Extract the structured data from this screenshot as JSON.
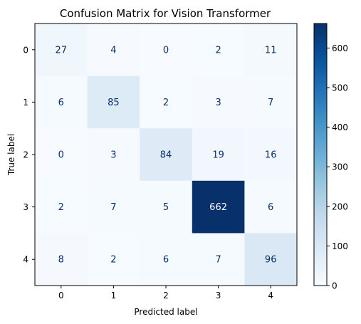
{
  "chart_data": {
    "type": "heatmap",
    "title": "Confusion Matrix for Vision Transformer",
    "xlabel": "Predicted label",
    "ylabel": "True label",
    "x_categories": [
      "0",
      "1",
      "2",
      "3",
      "4"
    ],
    "y_categories": [
      "0",
      "1",
      "2",
      "3",
      "4"
    ],
    "values": [
      [
        27,
        4,
        0,
        2,
        11
      ],
      [
        6,
        85,
        2,
        3,
        7
      ],
      [
        0,
        3,
        84,
        19,
        16
      ],
      [
        2,
        7,
        5,
        662,
        6
      ],
      [
        8,
        2,
        6,
        7,
        96
      ]
    ],
    "colormap": "Blues",
    "colorbar": {
      "range": [
        0,
        662
      ],
      "ticks": [
        0,
        100,
        200,
        300,
        400,
        500,
        600
      ]
    },
    "text_colors": {
      "light": "#ffffff",
      "dark": "#08306b"
    },
    "grid": false
  }
}
